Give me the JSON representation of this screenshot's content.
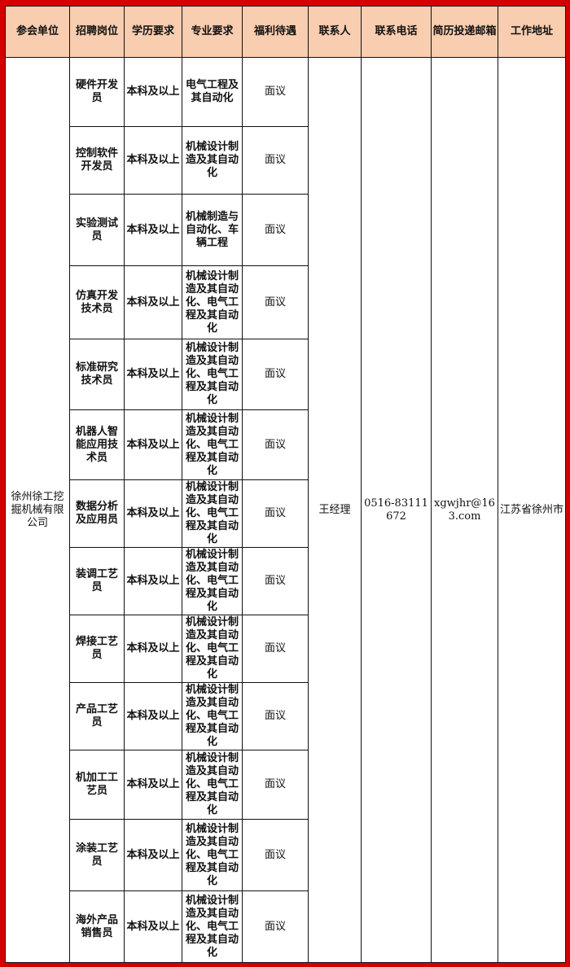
{
  "headers": [
    "参会单位",
    "招聘岗位",
    "学历要求",
    "专业要求",
    "福利待遇",
    "联系人",
    "联系电话",
    "简历投递邮箱",
    "工作地址"
  ],
  "company": "徐州徐工挖掘机械有限公司",
  "contact": "王经理",
  "phone": "0516-83111672",
  "email": "xgwjhr@163.com",
  "address": "江苏省徐州市",
  "rows": [
    {
      "position": "硬件开发员",
      "education": "本科及以上",
      "major": "电气工程及其自动化",
      "benefits": "面议"
    },
    {
      "position": "控制软件开发员",
      "education": "本科及以上",
      "major": "机械设计制造及其自动化",
      "benefits": "面议"
    },
    {
      "position": "实验测试员",
      "education": "本科及以上",
      "major": "机械制造与自动化、车辆工程",
      "benefits": "面议"
    },
    {
      "position": "仿真开发技术员",
      "education": "本科及以上",
      "major": "机械设计制造及其自动化、电气工程及其自动化",
      "benefits": "面议"
    },
    {
      "position": "标准研究技术员",
      "education": "本科及以上",
      "major": "机械设计制造及其自动化、电气工程及其自动化",
      "benefits": "面议"
    },
    {
      "position": "机器人智能应用技术员",
      "education": "本科及以上",
      "major": "机械设计制造及其自动化、电气工程及其自动化",
      "benefits": "面议"
    },
    {
      "position": "数据分析及应用员",
      "education": "本科及以上",
      "major": "机械设计制造及其自动化、电气工程及其自动化",
      "benefits": "面议"
    },
    {
      "position": "装调工艺员",
      "education": "本科及以上",
      "major": "机械设计制造及其自动化、电气工程及其自动化",
      "benefits": "面议"
    },
    {
      "position": "焊接工艺员",
      "education": "本科及以上",
      "major": "机械设计制造及其自动化、电气工程及其自动化",
      "benefits": "面议"
    },
    {
      "position": "产品工艺员",
      "education": "本科及以上",
      "major": "机械设计制造及其自动化、电气工程及其自动化",
      "benefits": "面议"
    },
    {
      "position": "机加工工艺员",
      "education": "本科及以上",
      "major": "机械设计制造及其自动化、电气工程及其自动化",
      "benefits": "面议"
    },
    {
      "position": "涂装工艺员",
      "education": "本科及以上",
      "major": "机械设计制造及其自动化、电气工程及其自动化",
      "benefits": "面议"
    },
    {
      "position": "海外产品销售员",
      "education": "本科及以上",
      "major": "机械设计制造及其自动化、电气工程及其自动化",
      "benefits": "面议"
    }
  ]
}
